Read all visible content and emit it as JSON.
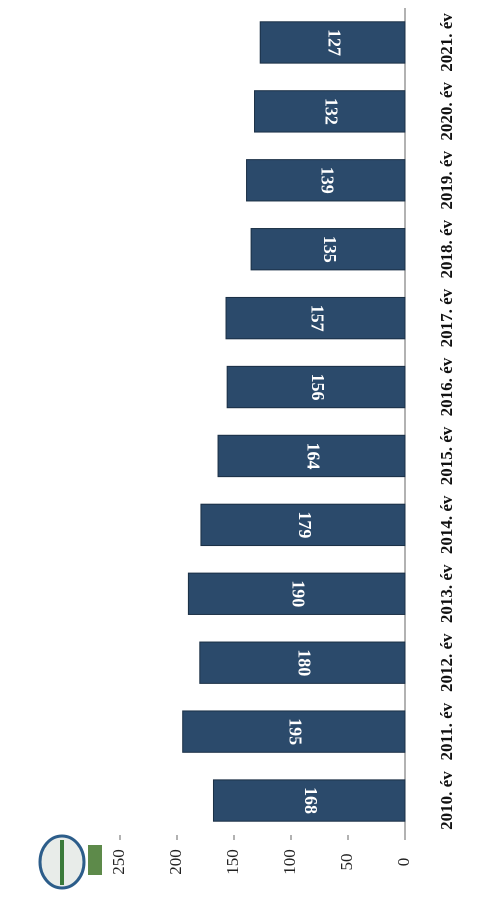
{
  "chart_data": {
    "type": "bar",
    "categories": [
      "2010. év",
      "2011. év",
      "2012. év",
      "2013. év",
      "2014. év",
      "2015. év",
      "2016. év",
      "2017. év",
      "2018. év",
      "2019. év",
      "2020. év",
      "2021. év"
    ],
    "values": [
      168,
      195,
      180,
      190,
      179,
      164,
      156,
      157,
      135,
      139,
      132,
      127
    ],
    "color": "#2b4a6b",
    "ylim": [
      0,
      250
    ],
    "yticks": [
      0,
      50,
      100,
      150,
      200,
      250
    ],
    "grid": false
  }
}
